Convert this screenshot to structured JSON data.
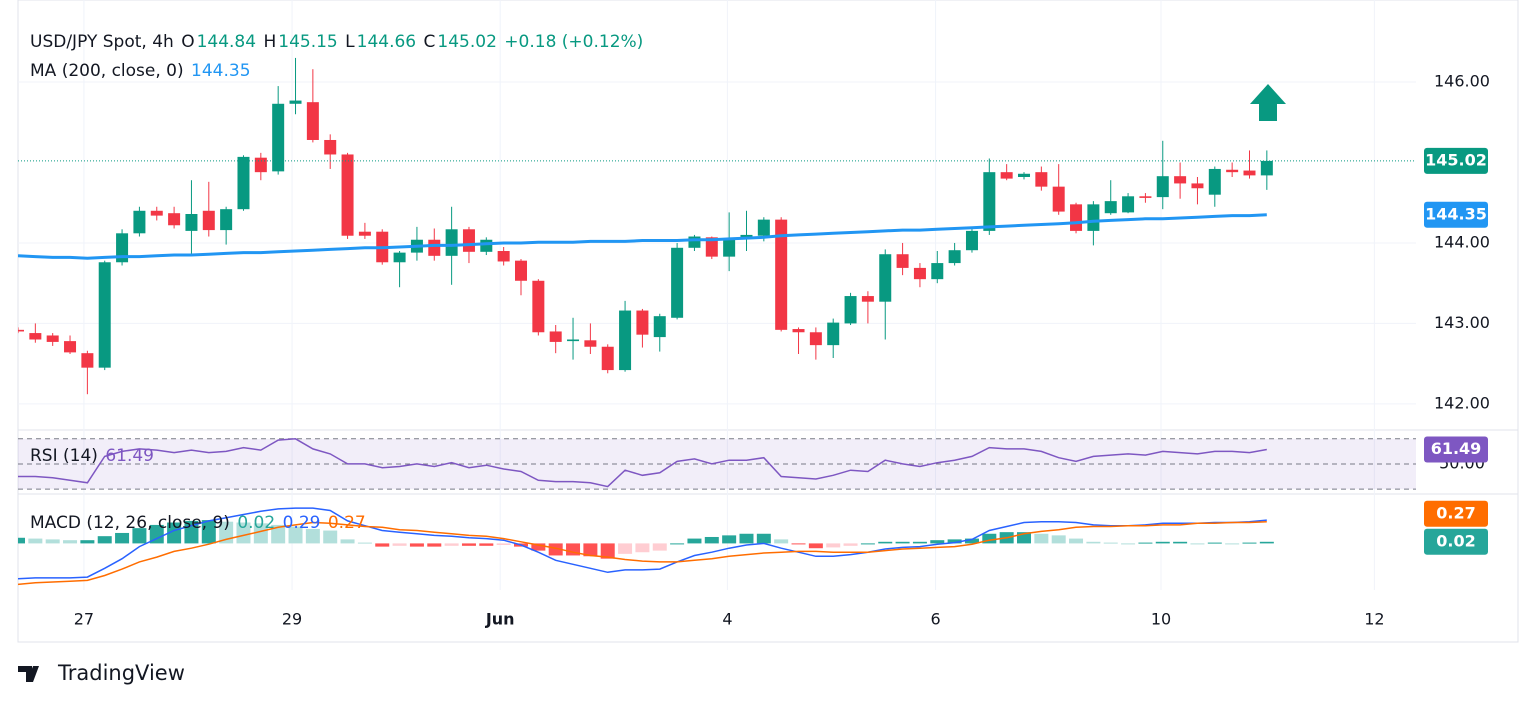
{
  "chart_data": [
    {
      "type": "candlestick",
      "title": "USD/JPY Spot, 4h",
      "ohlc_labels": [
        "O",
        "H",
        "L",
        "C"
      ],
      "change": "+0.18 (+0.12%)",
      "up_color": "#089981",
      "down_color": "#f23645",
      "open": [
        142.92,
        142.88,
        142.85,
        142.78,
        142.63,
        142.45,
        143.76,
        144.12,
        144.4,
        144.37,
        144.15,
        144.4,
        144.16,
        144.42,
        145.06,
        144.89,
        145.73,
        145.75,
        145.28,
        145.1,
        144.14,
        144.14,
        143.76,
        143.88,
        144.04,
        143.84,
        144.17,
        143.89,
        143.9,
        143.78,
        143.53,
        142.9,
        142.78,
        142.79,
        142.71,
        142.42,
        143.16,
        142.83,
        143.07,
        143.94,
        144.07,
        143.83,
        144.05,
        144.09,
        144.29,
        142.93,
        142.89,
        142.73,
        143.0,
        143.34,
        143.27,
        143.86,
        143.69,
        143.55,
        143.75,
        143.91,
        144.15,
        144.88,
        144.82,
        144.88,
        144.7,
        144.48,
        144.15,
        144.37,
        144.38,
        144.58,
        144.57,
        144.83,
        144.74,
        144.6,
        144.91,
        144.9,
        144.84
      ],
      "high": [
        142.95,
        143.0,
        142.88,
        142.85,
        142.66,
        143.78,
        144.17,
        144.45,
        144.45,
        144.45,
        144.78,
        144.76,
        144.45,
        145.09,
        145.12,
        145.95,
        146.3,
        146.16,
        145.35,
        145.12,
        144.25,
        144.17,
        143.9,
        144.2,
        144.18,
        144.45,
        144.2,
        144.07,
        143.95,
        143.8,
        143.55,
        142.98,
        143.07,
        143.0,
        142.74,
        143.28,
        143.18,
        143.12,
        144.0,
        144.1,
        144.08,
        144.38,
        144.4,
        144.32,
        144.32,
        142.95,
        142.95,
        143.06,
        143.38,
        143.4,
        143.92,
        144.0,
        143.75,
        143.9,
        144.0,
        144.2,
        145.05,
        144.98,
        144.88,
        144.95,
        144.98,
        144.5,
        144.52,
        144.78,
        144.62,
        144.62,
        145.27,
        145.0,
        144.82,
        144.95,
        145.0,
        145.15,
        145.15
      ],
      "low": [
        142.88,
        142.76,
        142.72,
        142.62,
        142.12,
        142.42,
        143.72,
        144.08,
        144.28,
        144.18,
        143.85,
        144.08,
        143.98,
        144.4,
        144.78,
        144.85,
        145.6,
        145.25,
        144.92,
        144.05,
        144.05,
        143.73,
        143.45,
        143.78,
        143.78,
        143.48,
        143.75,
        143.85,
        143.72,
        143.35,
        142.85,
        142.63,
        142.55,
        142.62,
        142.38,
        142.4,
        142.7,
        142.65,
        143.05,
        143.9,
        143.8,
        143.65,
        143.9,
        144.02,
        142.9,
        142.62,
        142.55,
        142.57,
        142.98,
        143.0,
        142.8,
        143.6,
        143.45,
        143.5,
        143.72,
        143.88,
        144.1,
        144.78,
        144.79,
        144.65,
        144.35,
        144.12,
        143.97,
        144.35,
        144.37,
        144.5,
        144.42,
        144.55,
        144.48,
        144.45,
        144.82,
        144.8,
        144.66
      ],
      "close": [
        142.9,
        142.8,
        142.77,
        142.64,
        142.45,
        143.76,
        144.12,
        144.4,
        144.34,
        144.22,
        144.36,
        144.16,
        144.42,
        145.07,
        144.88,
        145.73,
        145.77,
        145.28,
        145.1,
        144.09,
        144.09,
        143.76,
        143.88,
        144.04,
        143.84,
        144.17,
        143.89,
        144.04,
        143.77,
        143.53,
        142.89,
        142.77,
        142.8,
        142.71,
        142.42,
        143.16,
        142.86,
        143.09,
        143.94,
        144.08,
        143.83,
        144.05,
        144.1,
        144.29,
        142.92,
        142.89,
        142.73,
        143.01,
        143.34,
        143.27,
        143.86,
        143.69,
        143.55,
        143.75,
        143.91,
        144.15,
        144.88,
        144.8,
        144.86,
        144.7,
        144.39,
        144.15,
        144.48,
        144.52,
        144.58,
        144.56,
        144.83,
        144.74,
        144.68,
        144.92,
        144.88,
        144.84,
        145.02
      ],
      "ma": {
        "name": "MA (200, close, 0)",
        "color": "#2196f3",
        "values": [
          143.84,
          143.83,
          143.82,
          143.82,
          143.81,
          143.82,
          143.83,
          143.83,
          143.84,
          143.85,
          143.85,
          143.86,
          143.87,
          143.88,
          143.88,
          143.89,
          143.9,
          143.91,
          143.92,
          143.93,
          143.94,
          143.94,
          143.95,
          143.96,
          143.97,
          143.97,
          143.98,
          143.99,
          144.0,
          144.0,
          144.01,
          144.01,
          144.01,
          144.02,
          144.02,
          144.02,
          144.03,
          144.03,
          144.03,
          144.04,
          144.04,
          144.05,
          144.06,
          144.07,
          144.09,
          144.1,
          144.11,
          144.12,
          144.13,
          144.14,
          144.15,
          144.16,
          144.16,
          144.17,
          144.18,
          144.19,
          144.2,
          144.21,
          144.22,
          144.23,
          144.24,
          144.25,
          144.27,
          144.28,
          144.29,
          144.3,
          144.3,
          144.31,
          144.32,
          144.33,
          144.34,
          144.34,
          144.35
        ]
      },
      "xlim": [
        0,
        80.6
      ],
      "ylim": [
        141.7,
        147.02
      ],
      "yticks": [
        {
          "value": 142,
          "label": "142.00"
        },
        {
          "value": 143,
          "label": "143.00"
        },
        {
          "value": 144,
          "label": "144.00"
        },
        {
          "value": 146,
          "label": "146.00"
        }
      ],
      "grid": true
    },
    {
      "type": "line",
      "name": "RSI (14)",
      "color": "#7e57c2",
      "band_color": "rgba(126,87,194,0.1)",
      "levels": [
        30,
        50,
        70
      ],
      "values": [
        40,
        40,
        39,
        37,
        35,
        56,
        60,
        62,
        61,
        59,
        61,
        59,
        60,
        63,
        61,
        69,
        70,
        62,
        58,
        50,
        50,
        47,
        48,
        50,
        48,
        51,
        47,
        49,
        46,
        44,
        37,
        36,
        36,
        35,
        32,
        45,
        41,
        43,
        52,
        54,
        50,
        53,
        53,
        55,
        40,
        39,
        38,
        41,
        45,
        44,
        53,
        50,
        48,
        51,
        53,
        56,
        63,
        62,
        62,
        60,
        55,
        52,
        56,
        57,
        58,
        57,
        60,
        59,
        58,
        60,
        60,
        59,
        61.49
      ],
      "xlim": [
        0,
        80.6
      ],
      "ylim": [
        27.7,
        75.4
      ],
      "yticks": [
        {
          "value": 50,
          "label": "50.00"
        }
      ]
    },
    {
      "type": "macd",
      "name": "MACD (12, 26, close, 9)",
      "histogram": {
        "colors": [
          "#26a69a",
          "#b2dfdb",
          "#ffcdd2",
          "#ff5252"
        ],
        "values": [
          0.07,
          0.06,
          0.05,
          0.04,
          0.04,
          0.09,
          0.13,
          0.19,
          0.23,
          0.26,
          0.28,
          0.29,
          0.27,
          0.26,
          0.25,
          0.23,
          0.21,
          0.18,
          0.16,
          0.05,
          0.01,
          -0.04,
          -0.03,
          -0.04,
          -0.04,
          -0.03,
          -0.03,
          -0.03,
          -0.02,
          -0.04,
          -0.09,
          -0.15,
          -0.15,
          -0.16,
          -0.19,
          -0.13,
          -0.11,
          -0.09,
          0.0,
          0.06,
          0.08,
          0.1,
          0.12,
          0.12,
          0.05,
          -0.01,
          -0.06,
          -0.05,
          -0.03,
          0.0,
          0.02,
          0.02,
          0.02,
          0.04,
          0.05,
          0.06,
          0.12,
          0.14,
          0.14,
          0.12,
          0.1,
          0.06,
          0.02,
          0.01,
          0.0,
          0.01,
          0.02,
          0.02,
          0.0,
          0.01,
          0.0,
          0.01,
          0.02
        ]
      },
      "macd": {
        "color": "#2962ff",
        "values": [
          -0.44,
          -0.43,
          -0.43,
          -0.43,
          -0.42,
          -0.31,
          -0.19,
          -0.04,
          0.06,
          0.16,
          0.22,
          0.28,
          0.32,
          0.36,
          0.4,
          0.43,
          0.44,
          0.44,
          0.41,
          0.28,
          0.22,
          0.16,
          0.14,
          0.12,
          0.1,
          0.09,
          0.07,
          0.06,
          0.04,
          -0.02,
          -0.11,
          -0.21,
          -0.26,
          -0.31,
          -0.36,
          -0.33,
          -0.33,
          -0.32,
          -0.23,
          -0.15,
          -0.11,
          -0.06,
          -0.02,
          0.0,
          -0.06,
          -0.11,
          -0.16,
          -0.16,
          -0.14,
          -0.11,
          -0.07,
          -0.05,
          -0.04,
          -0.01,
          0.01,
          0.05,
          0.16,
          0.21,
          0.26,
          0.27,
          0.27,
          0.26,
          0.23,
          0.22,
          0.22,
          0.23,
          0.25,
          0.25,
          0.25,
          0.26,
          0.26,
          0.27,
          0.29
        ]
      },
      "signal": {
        "color": "#ff6d00",
        "values": [
          -0.51,
          -0.49,
          -0.48,
          -0.47,
          -0.46,
          -0.4,
          -0.32,
          -0.23,
          -0.17,
          -0.1,
          -0.06,
          -0.01,
          0.05,
          0.1,
          0.15,
          0.2,
          0.23,
          0.26,
          0.25,
          0.23,
          0.21,
          0.2,
          0.17,
          0.16,
          0.14,
          0.12,
          0.1,
          0.09,
          0.06,
          0.02,
          -0.02,
          -0.06,
          -0.11,
          -0.15,
          -0.17,
          -0.2,
          -0.22,
          -0.23,
          -0.23,
          -0.21,
          -0.19,
          -0.16,
          -0.14,
          -0.12,
          -0.11,
          -0.1,
          -0.1,
          -0.11,
          -0.11,
          -0.11,
          -0.09,
          -0.07,
          -0.06,
          -0.05,
          -0.04,
          -0.01,
          0.04,
          0.07,
          0.12,
          0.15,
          0.17,
          0.2,
          0.21,
          0.21,
          0.22,
          0.22,
          0.23,
          0.23,
          0.25,
          0.25,
          0.26,
          0.26,
          0.27
        ]
      },
      "xlim": [
        0,
        80.6
      ],
      "ylim": [
        -0.58,
        0.59
      ],
      "xticks": [
        {
          "value": 3.8,
          "label": "27"
        },
        {
          "value": 15.8,
          "label": "29"
        },
        {
          "value": 27.8,
          "label": "Jun"
        },
        {
          "value": 40.9,
          "label": "4"
        },
        {
          "value": 52.9,
          "label": "6"
        },
        {
          "value": 65.9,
          "label": "10"
        },
        {
          "value": 78.2,
          "label": "12"
        }
      ]
    }
  ],
  "footer": {
    "brand": "TradingView"
  }
}
